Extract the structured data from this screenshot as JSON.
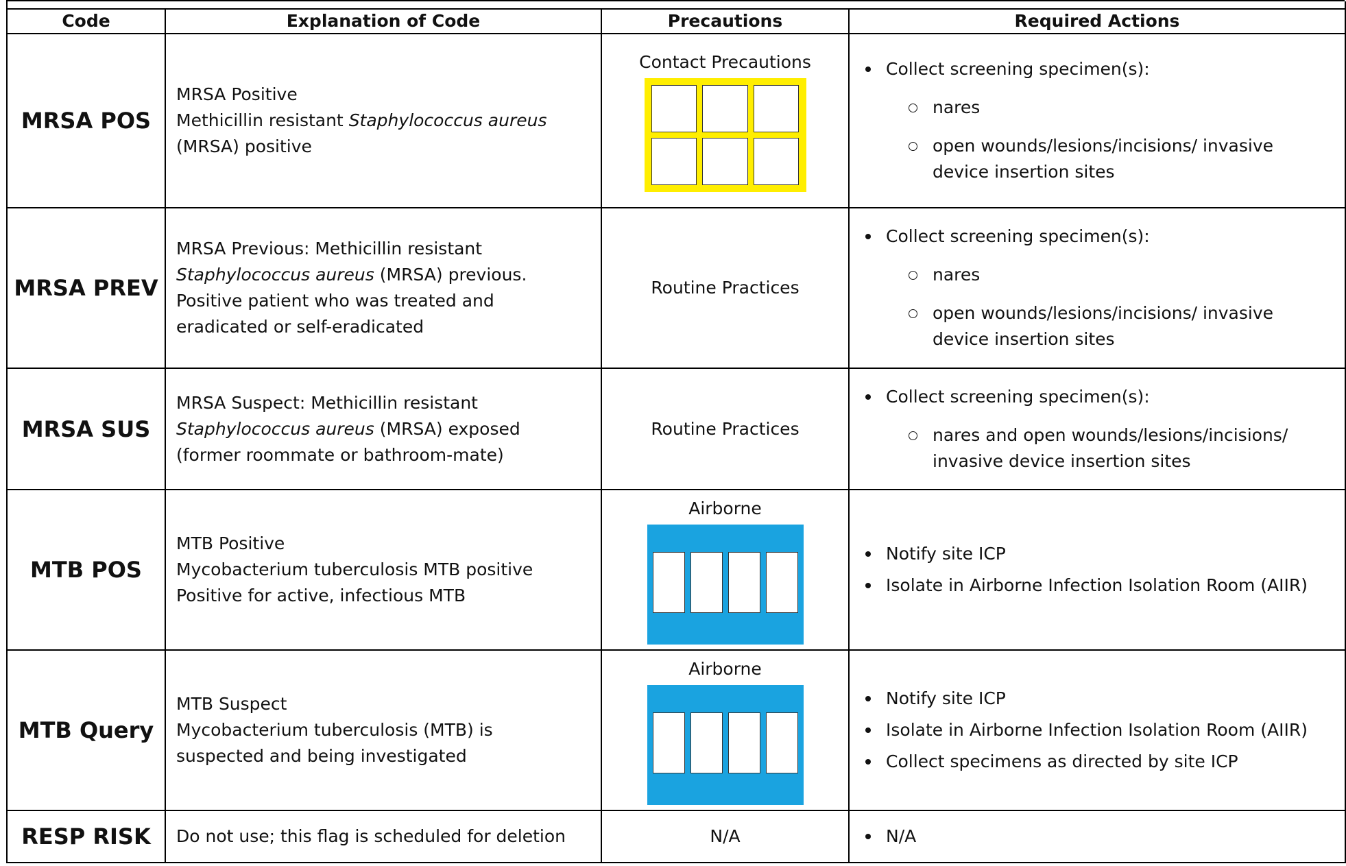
{
  "table": {
    "header": [
      "Code",
      "Explanation of Code",
      "Precautions",
      "Required Actions"
    ],
    "rows": [
      {
        "code": "MRSA POS",
        "explanation": [
          [
            "MRSA Positive"
          ],
          [
            "Methicillin resistant ",
            {
              "text": "Staphylococcus aureus",
              "style": "italic"
            }
          ],
          [
            "(MRSA) positive"
          ]
        ],
        "precaution": "Contact Precautions",
        "poster_color": "#ffee00",
        "actions": [
          {
            "text": "Collect screening specimen(s):",
            "sub": [
              "nares",
              "open wounds/lesions/incisions/ invasive device insertion sites"
            ]
          }
        ]
      },
      {
        "code": "MRSA PREV",
        "explanation": [
          [
            "MRSA Previous: Methicillin resistant"
          ],
          [
            {
              "text": "Staphylococcus aureus",
              "style": "italic"
            },
            " (MRSA) previous."
          ],
          [
            "Positive patient who was treated and"
          ],
          [
            "eradicated or self-eradicated"
          ]
        ],
        "precaution": "Routine Practices",
        "actions": [
          {
            "text": "Collect screening specimen(s):",
            "sub": [
              "nares",
              "open wounds/lesions/incisions/ invasive device insertion sites"
            ]
          }
        ]
      },
      {
        "code": "MRSA SUS",
        "explanation": [
          [
            "MRSA Suspect: Methicillin resistant"
          ],
          [
            {
              "text": "Staphylococcus aureus",
              "style": "italic"
            },
            " (MRSA) exposed"
          ],
          [
            "(former roommate or bathroom-mate)"
          ]
        ],
        "precaution": "Routine Practices",
        "actions": [
          {
            "text": "Collect screening specimen(s):",
            "sub": [
              "nares and open wounds/lesions/incisions/ invasive device insertion sites"
            ]
          }
        ]
      },
      {
        "code": "MTB POS",
        "explanation": [
          [
            "MTB Positive"
          ],
          [
            "Mycobacterium tuberculosis MTB positive"
          ],
          [
            "Positive for active, infectious MTB"
          ]
        ],
        "precaution": "Airborne",
        "poster_color": "#1aa3e0",
        "actions": [
          {
            "text": "Notify site ICP"
          },
          {
            "text": "Isolate in Airborne Infection Isolation Room (AIIR)"
          }
        ]
      },
      {
        "code": "MTB Query",
        "explanation": [
          [
            "MTB Suspect"
          ],
          [
            "Mycobacterium tuberculosis (MTB) is"
          ],
          [
            "suspected and being investigated"
          ]
        ],
        "precaution": "Airborne",
        "poster_color": "#1aa3e0",
        "actions": [
          {
            "text": "Notify site ICP"
          },
          {
            "text": "Isolate in Airborne Infection Isolation Room (AIIR)"
          },
          {
            "text": "Collect specimens as directed by site ICP"
          }
        ]
      },
      {
        "code": "RESP RISK",
        "explanation": [
          [
            "Do not use; this flag is scheduled for deletion"
          ]
        ],
        "precaution": "N/A",
        "actions": [
          {
            "text": "N/A"
          }
        ]
      }
    ]
  }
}
